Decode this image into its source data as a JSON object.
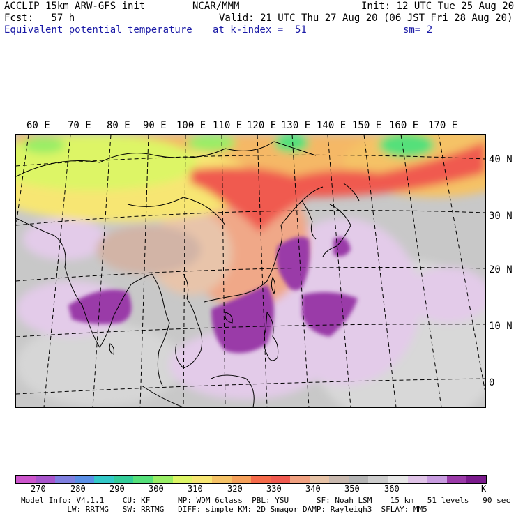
{
  "header": {
    "line1_left": "ACCLIP 15km ARW-GFS init",
    "line1_center": "NCAR/MMM",
    "line1_right": "Init: 12 UTC Tue 25 Aug 20",
    "line2_left": "Fcst:   57 h",
    "line2_right": "Valid: 21 UTC Thu 27 Aug 20 (06 JST Fri 28 Aug 20)",
    "field_name": "Equivalent potential temperature",
    "level": "at k-index =  51",
    "smoothing": "sm= 2"
  },
  "map": {
    "lon_labels": [
      "60 E",
      "70 E",
      "80 E",
      "90 E",
      "100 E",
      "110 E",
      "120 E",
      "130 E",
      "140 E",
      "150 E",
      "160 E",
      "170 E"
    ],
    "lat_labels": [
      "40 N",
      "30 N",
      "20 N",
      "10 N",
      "0"
    ],
    "colors": {
      "land_outline": "#000000",
      "gridline": "#000000",
      "ocean_base": "#c6c6c6"
    }
  },
  "colorbar": {
    "colors": [
      "#cc55cc",
      "#a855cc",
      "#7f7fe0",
      "#5a8fe6",
      "#33c8c8",
      "#33cc99",
      "#55e07a",
      "#99ee66",
      "#ddf566",
      "#f7e673",
      "#f5c266",
      "#f5a05a",
      "#f56a4a",
      "#f05a50",
      "#f0a080",
      "#e6c2a6",
      "#c8b8ae",
      "#b4b4b4",
      "#cccccc",
      "#e6e6e6",
      "#e0c4e8",
      "#c89ce0",
      "#9a3aa8",
      "#7a1a8c"
    ],
    "labels": [
      "270",
      "280",
      "290",
      "300",
      "310",
      "320",
      "330",
      "340",
      "350",
      "360"
    ],
    "unit": "K"
  },
  "footer": {
    "line1": "Model Info: V4.1.1    CU: KF      MP: WDM 6class  PBL: YSU      SF: Noah LSM    15 km   51 levels   90 sec",
    "line2": "          LW: RRTMG   SW: RRTMG   DIFF: simple KM: 2D Smagor DAMP: Rayleigh3  SFLAY: MM5"
  }
}
